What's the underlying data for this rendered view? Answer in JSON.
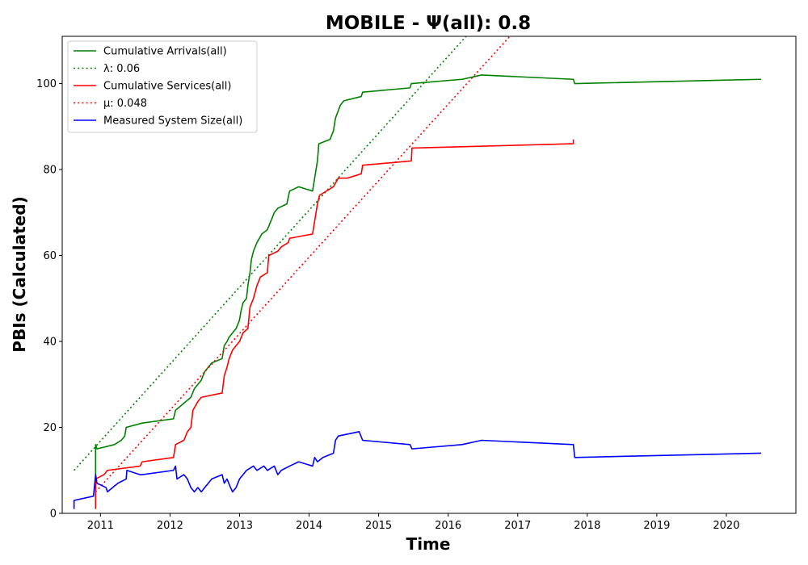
{
  "chart_data": {
    "type": "line",
    "title": "MOBILE -  Ψ(all): 0.8",
    "xlabel": "Time",
    "ylabel": "PBIs (Calculated)",
    "xlim": [
      2010.45,
      2021.0
    ],
    "ylim": [
      0,
      111
    ],
    "x_ticks": [
      2011,
      2012,
      2013,
      2014,
      2015,
      2016,
      2017,
      2018,
      2019,
      2020
    ],
    "x_tick_labels": [
      "2011",
      "2012",
      "2013",
      "2014",
      "2015",
      "2016",
      "2017",
      "2018",
      "2019",
      "2020"
    ],
    "y_ticks": [
      0,
      20,
      40,
      60,
      80,
      100
    ],
    "y_tick_labels": [
      "0",
      "20",
      "40",
      "60",
      "80",
      "100"
    ],
    "grid": false,
    "legend_position": "upper-left",
    "series": [
      {
        "name": "Cumulative Arrivals(all)",
        "color": "#008000",
        "style": "solid",
        "points": [
          [
            2010.93,
            5
          ],
          [
            2010.93,
            16
          ],
          [
            2010.95,
            15
          ],
          [
            2011.2,
            16
          ],
          [
            2011.3,
            17
          ],
          [
            2011.35,
            18
          ],
          [
            2011.37,
            20
          ],
          [
            2011.6,
            21
          ],
          [
            2012.05,
            22
          ],
          [
            2012.08,
            24
          ],
          [
            2012.3,
            27
          ],
          [
            2012.35,
            29
          ],
          [
            2012.45,
            31
          ],
          [
            2012.5,
            33
          ],
          [
            2012.55,
            34
          ],
          [
            2012.6,
            35
          ],
          [
            2012.75,
            36
          ],
          [
            2012.78,
            39
          ],
          [
            2012.82,
            40
          ],
          [
            2012.85,
            41
          ],
          [
            2012.95,
            43
          ],
          [
            2013.0,
            45
          ],
          [
            2013.02,
            47
          ],
          [
            2013.05,
            49
          ],
          [
            2013.1,
            50
          ],
          [
            2013.12,
            53
          ],
          [
            2013.15,
            56
          ],
          [
            2013.17,
            59
          ],
          [
            2013.2,
            61
          ],
          [
            2013.25,
            63
          ],
          [
            2013.32,
            65
          ],
          [
            2013.4,
            66
          ],
          [
            2013.45,
            68
          ],
          [
            2013.5,
            70
          ],
          [
            2013.55,
            71
          ],
          [
            2013.68,
            72
          ],
          [
            2013.72,
            75
          ],
          [
            2013.85,
            76
          ],
          [
            2014.05,
            75
          ],
          [
            2014.08,
            78
          ],
          [
            2014.12,
            82
          ],
          [
            2014.14,
            86
          ],
          [
            2014.3,
            87
          ],
          [
            2014.35,
            89
          ],
          [
            2014.38,
            92
          ],
          [
            2014.45,
            95
          ],
          [
            2014.5,
            96
          ],
          [
            2014.75,
            97
          ],
          [
            2014.77,
            98
          ],
          [
            2015.45,
            99
          ],
          [
            2015.47,
            100
          ],
          [
            2016.2,
            101
          ],
          [
            2016.48,
            102
          ],
          [
            2017.8,
            101
          ],
          [
            2017.82,
            100
          ],
          [
            2020.5,
            101
          ]
        ]
      },
      {
        "name": "λ: 0.06",
        "color": "#008000",
        "style": "dotted",
        "points": [
          [
            2010.62,
            10
          ],
          [
            2016.37,
            113
          ]
        ]
      },
      {
        "name": "Cumulative Services(all)",
        "color": "#ff0000",
        "style": "solid",
        "points": [
          [
            2010.93,
            1
          ],
          [
            2010.93,
            8
          ],
          [
            2011.05,
            9
          ],
          [
            2011.1,
            10
          ],
          [
            2011.57,
            11
          ],
          [
            2011.6,
            12
          ],
          [
            2012.05,
            13
          ],
          [
            2012.08,
            16
          ],
          [
            2012.2,
            17
          ],
          [
            2012.25,
            19
          ],
          [
            2012.3,
            20
          ],
          [
            2012.33,
            24
          ],
          [
            2012.4,
            26
          ],
          [
            2012.45,
            27
          ],
          [
            2012.75,
            28
          ],
          [
            2012.78,
            32
          ],
          [
            2012.82,
            34
          ],
          [
            2012.85,
            36
          ],
          [
            2012.9,
            38
          ],
          [
            2013.0,
            40
          ],
          [
            2013.05,
            42
          ],
          [
            2013.12,
            43
          ],
          [
            2013.15,
            48
          ],
          [
            2013.2,
            50
          ],
          [
            2013.25,
            53
          ],
          [
            2013.3,
            55
          ],
          [
            2013.4,
            56
          ],
          [
            2013.42,
            60
          ],
          [
            2013.55,
            61
          ],
          [
            2013.6,
            62
          ],
          [
            2013.7,
            63
          ],
          [
            2013.72,
            64
          ],
          [
            2014.05,
            65
          ],
          [
            2014.08,
            68
          ],
          [
            2014.12,
            72
          ],
          [
            2014.15,
            74
          ],
          [
            2014.35,
            76
          ],
          [
            2014.42,
            78
          ],
          [
            2014.55,
            78
          ],
          [
            2014.75,
            79
          ],
          [
            2014.77,
            81
          ],
          [
            2015.47,
            82
          ],
          [
            2015.48,
            85
          ],
          [
            2017.8,
            86
          ],
          [
            2017.8,
            87
          ]
        ]
      },
      {
        "name": "μ: 0.048",
        "color": "#ff0000",
        "style": "dotted",
        "points": [
          [
            2010.93,
            5
          ],
          [
            2017.0,
            113
          ]
        ]
      },
      {
        "name": "Measured System Size(all)",
        "color": "#0000ff",
        "style": "solid",
        "points": [
          [
            2010.62,
            1
          ],
          [
            2010.62,
            3
          ],
          [
            2010.9,
            4
          ],
          [
            2010.93,
            9
          ],
          [
            2010.95,
            7
          ],
          [
            2011.08,
            6
          ],
          [
            2011.1,
            5
          ],
          [
            2011.25,
            7
          ],
          [
            2011.37,
            8
          ],
          [
            2011.38,
            10
          ],
          [
            2011.57,
            9
          ],
          [
            2011.6,
            9
          ],
          [
            2012.05,
            10
          ],
          [
            2012.08,
            11
          ],
          [
            2012.1,
            8
          ],
          [
            2012.2,
            9
          ],
          [
            2012.25,
            8
          ],
          [
            2012.3,
            6
          ],
          [
            2012.35,
            5
          ],
          [
            2012.4,
            6
          ],
          [
            2012.45,
            5
          ],
          [
            2012.5,
            6
          ],
          [
            2012.55,
            7
          ],
          [
            2012.6,
            8
          ],
          [
            2012.75,
            9
          ],
          [
            2012.78,
            7
          ],
          [
            2012.82,
            8
          ],
          [
            2012.87,
            6
          ],
          [
            2012.9,
            5
          ],
          [
            2012.95,
            6
          ],
          [
            2013.0,
            8
          ],
          [
            2013.05,
            9
          ],
          [
            2013.1,
            10
          ],
          [
            2013.2,
            11
          ],
          [
            2013.25,
            10
          ],
          [
            2013.35,
            11
          ],
          [
            2013.4,
            10
          ],
          [
            2013.5,
            11
          ],
          [
            2013.55,
            9
          ],
          [
            2013.6,
            10
          ],
          [
            2013.72,
            11
          ],
          [
            2013.85,
            12
          ],
          [
            2014.05,
            11
          ],
          [
            2014.08,
            13
          ],
          [
            2014.12,
            12
          ],
          [
            2014.2,
            13
          ],
          [
            2014.35,
            14
          ],
          [
            2014.38,
            17
          ],
          [
            2014.42,
            18
          ],
          [
            2014.72,
            19
          ],
          [
            2014.77,
            17
          ],
          [
            2015.45,
            16
          ],
          [
            2015.48,
            15
          ],
          [
            2016.2,
            16
          ],
          [
            2016.48,
            17
          ],
          [
            2017.8,
            16
          ],
          [
            2017.82,
            13
          ],
          [
            2020.5,
            14
          ]
        ]
      }
    ]
  }
}
